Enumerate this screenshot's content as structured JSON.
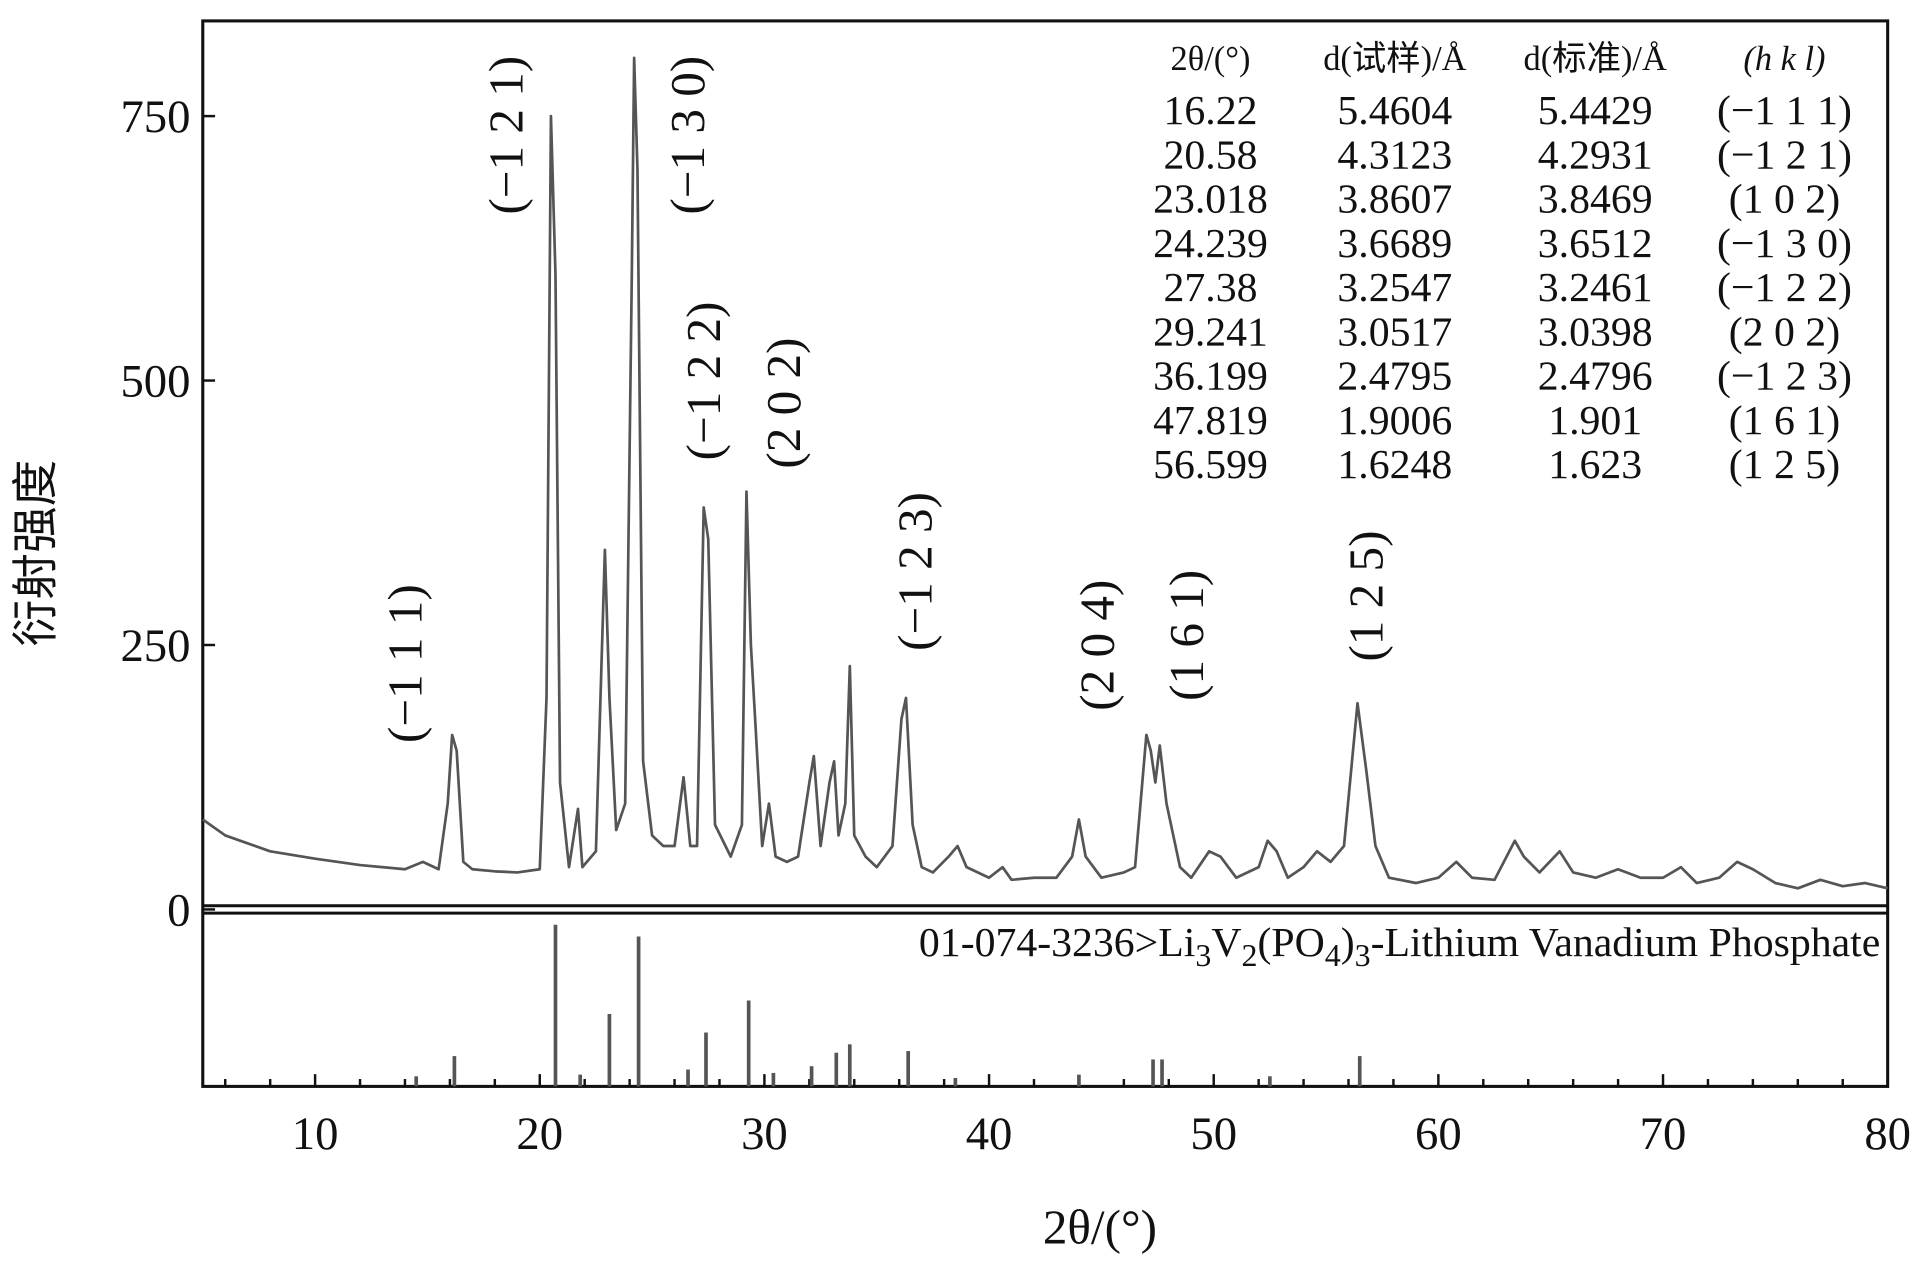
{
  "chart_data": {
    "type": "line",
    "color": "#555555",
    "xlabel": "2θ/(°)",
    "ylabel": "衍射强度",
    "xlim": [
      5,
      80
    ],
    "ylim": [
      0,
      840
    ],
    "xticks": [
      10,
      20,
      30,
      40,
      50,
      60,
      70,
      80
    ],
    "xminorticks": [
      6,
      8,
      12,
      14,
      16,
      18,
      22,
      24,
      26,
      28,
      32,
      34,
      36,
      38,
      42,
      44,
      46,
      48,
      52,
      54,
      56,
      58,
      62,
      64,
      66,
      68,
      72,
      74,
      76,
      78
    ],
    "yticks": [
      0,
      250,
      500,
      750
    ],
    "x": [
      5,
      6,
      8,
      10,
      12,
      14,
      14.8,
      15.5,
      15.9,
      16.1,
      16.3,
      16.6,
      17,
      18,
      19,
      20,
      20.3,
      20.5,
      20.7,
      20.9,
      21.3,
      21.7,
      21.9,
      22.5,
      22.9,
      23.1,
      23.4,
      23.8,
      24.1,
      24.2,
      24.35,
      24.6,
      25,
      25.5,
      26,
      26.4,
      26.7,
      27,
      27.3,
      27.5,
      27.8,
      28.5,
      29,
      29.2,
      29.4,
      29.6,
      29.9,
      30.2,
      30.5,
      31,
      31.5,
      32,
      32.2,
      32.5,
      32.9,
      33.1,
      33.3,
      33.6,
      33.8,
      34,
      34.5,
      35,
      35.7,
      36.1,
      36.3,
      36.6,
      37,
      37.5,
      38.2,
      38.6,
      39,
      40,
      40.6,
      41,
      42,
      43,
      43.7,
      44,
      44.3,
      45,
      46,
      46.5,
      47,
      47.2,
      47.4,
      47.6,
      47.9,
      48.5,
      49,
      49.8,
      50.3,
      51,
      52,
      52.4,
      52.8,
      53.3,
      54,
      54.6,
      55.2,
      55.8,
      56.4,
      56.8,
      57.2,
      57.8,
      59,
      60,
      60.8,
      61.5,
      62.5,
      63.4,
      63.8,
      64.5,
      65.4,
      66,
      67,
      68,
      69,
      70,
      70.8,
      71.5,
      72.5,
      73.3,
      74,
      75,
      76,
      77,
      78,
      79,
      80
    ],
    "values": [
      85,
      70,
      55,
      48,
      42,
      38,
      45,
      38,
      100,
      165,
      150,
      45,
      38,
      36,
      35,
      38,
      200,
      750,
      600,
      120,
      40,
      95,
      40,
      55,
      340,
      200,
      75,
      100,
      600,
      805,
      700,
      140,
      70,
      60,
      60,
      125,
      60,
      60,
      380,
      350,
      80,
      50,
      80,
      395,
      250,
      175,
      60,
      100,
      50,
      45,
      50,
      120,
      145,
      60,
      120,
      140,
      70,
      100,
      230,
      70,
      50,
      40,
      60,
      180,
      200,
      80,
      40,
      35,
      50,
      60,
      40,
      30,
      40,
      28,
      30,
      30,
      50,
      85,
      50,
      30,
      35,
      40,
      165,
      150,
      120,
      155,
      100,
      40,
      30,
      55,
      50,
      30,
      40,
      65,
      55,
      30,
      40,
      55,
      45,
      60,
      195,
      130,
      60,
      30,
      25,
      30,
      45,
      30,
      28,
      65,
      50,
      35,
      55,
      35,
      30,
      38,
      30,
      30,
      40,
      25,
      30,
      45,
      38,
      25,
      20,
      28,
      22,
      25,
      20
    ],
    "annotations": [
      "(−1 1 1)",
      "(−1 2 1)",
      "(−1 3 0)",
      "(−1 2 2)",
      "(2 0 2)",
      "(−1 2 3)",
      "(2 0 4)",
      "(1 6 1)",
      "(1 2 5)"
    ],
    "table": {
      "header": [
        "2θ/(°)",
        "d(试样)/Å",
        "d(标准)/Å",
        "(h  k  l)"
      ],
      "rows": [
        [
          "16.22",
          "5.4604",
          "5.4429",
          "(−1 1 1)"
        ],
        [
          "20.58",
          "4.3123",
          "4.2931",
          "(−1 2 1)"
        ],
        [
          "23.018",
          "3.8607",
          "3.8469",
          "(1 0 2)"
        ],
        [
          "24.239",
          "3.6689",
          "3.6512",
          "(−1 3 0)"
        ],
        [
          "27.38",
          "3.2547",
          "3.2461",
          "(−1 2 2)"
        ],
        [
          "29.241",
          "3.0517",
          "3.0398",
          "(2 0 2)"
        ],
        [
          "36.199",
          "2.4795",
          "2.4796",
          "(−1 2 3)"
        ],
        [
          "47.819",
          "1.9006",
          "1.901",
          "(1 6 1)"
        ],
        [
          "56.599",
          "1.6248",
          "1.623",
          "(1 2 5)"
        ]
      ]
    },
    "reference": {
      "label_parts": [
        {
          "text": "01-074-3236>Li",
          "sub": false
        },
        {
          "text": "3",
          "sub": true
        },
        {
          "text": "V",
          "sub": false
        },
        {
          "text": "2",
          "sub": true
        },
        {
          "text": "(PO",
          "sub": false
        },
        {
          "text": "4",
          "sub": true
        },
        {
          "text": ")",
          "sub": false
        },
        {
          "text": "3",
          "sub": true
        },
        {
          "text": "-Lithium Vanadium Phosphate",
          "sub": false
        }
      ],
      "ylim": [
        0,
        100
      ],
      "x": [
        14.5,
        16.2,
        20.7,
        21.8,
        23.1,
        24.4,
        26.6,
        27.4,
        29.3,
        30.4,
        32.1,
        33.2,
        33.8,
        36.4,
        38.5,
        44,
        47.3,
        47.7,
        52.5,
        56.5
      ],
      "values": [
        6,
        18,
        96,
        7,
        43,
        89,
        10,
        32,
        51,
        8,
        12,
        20,
        25,
        21,
        5,
        7,
        16,
        16,
        6,
        18
      ]
    }
  }
}
